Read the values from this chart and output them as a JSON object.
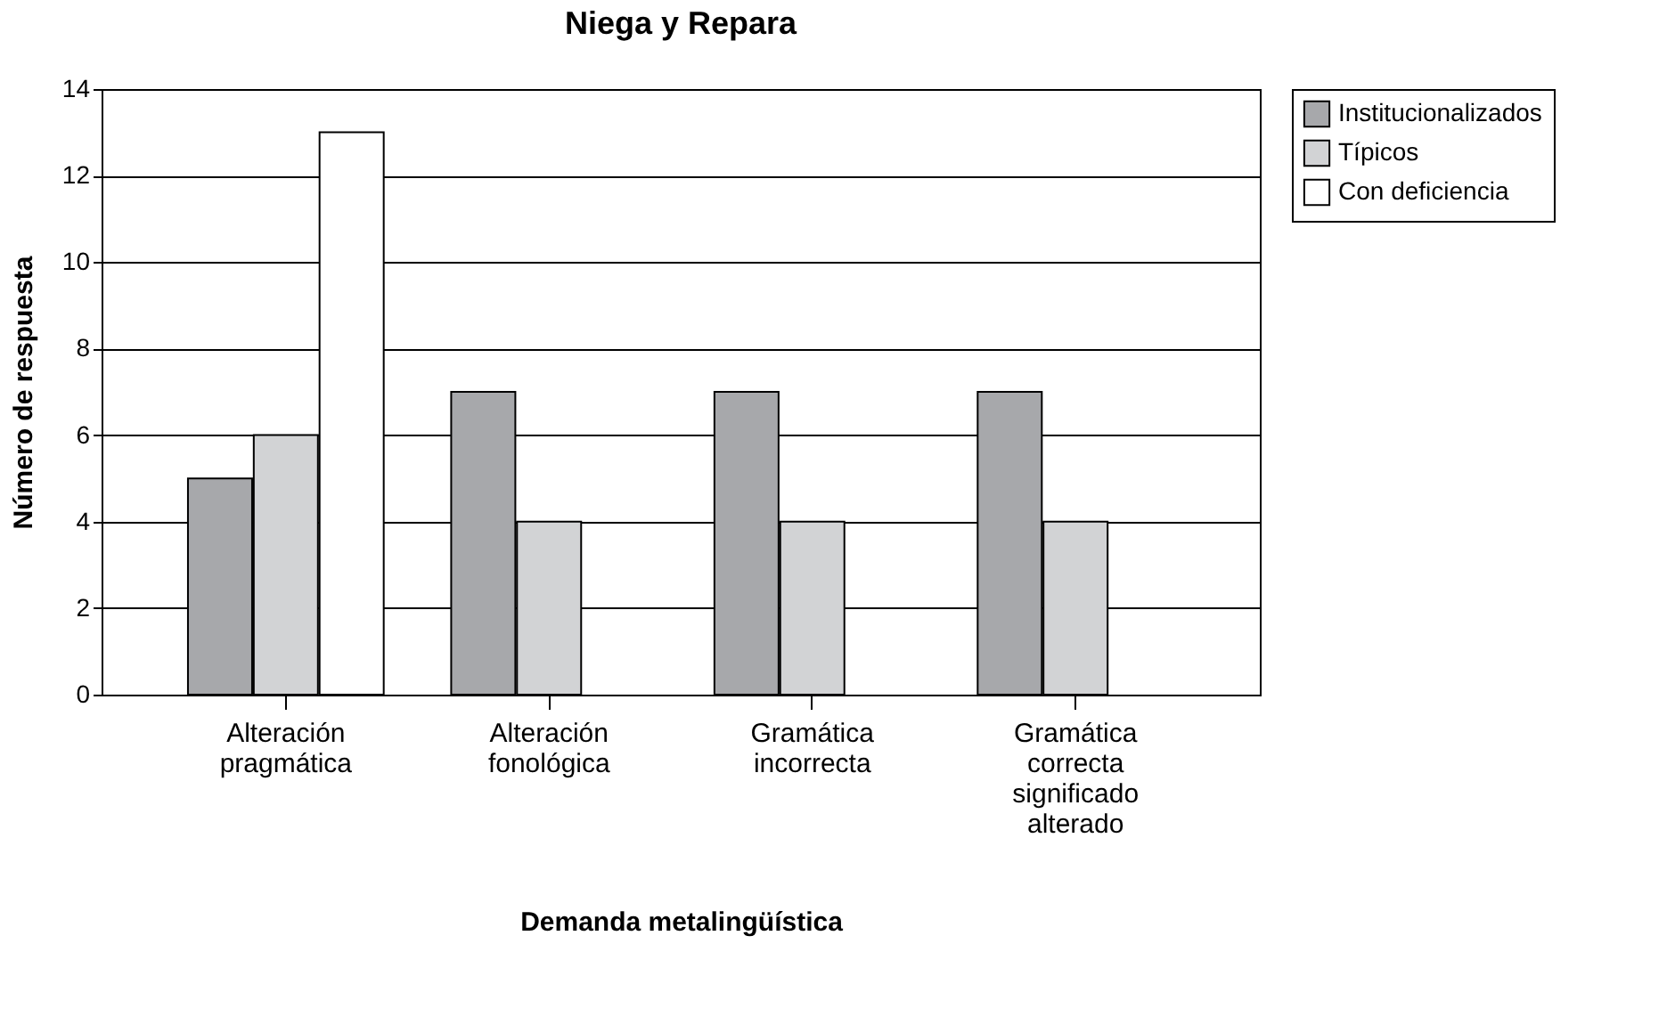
{
  "chart_data": {
    "type": "bar",
    "title": "Niega y Repara",
    "xlabel": "Demanda  metalingüística",
    "ylabel": "Número  de  respuesta",
    "categories": [
      "Alteración pragmática",
      "Alteración fonológica",
      "Gramática incorrecta",
      "Gramática correcta significado alterado"
    ],
    "series": [
      {
        "name": "Institucionalizados",
        "color": "#a7a8ab",
        "values": [
          5,
          7,
          7,
          7
        ]
      },
      {
        "name": "Típicos",
        "color": "#d2d3d5",
        "values": [
          6,
          4,
          4,
          4
        ]
      },
      {
        "name": "Con deficiencia",
        "color": "#ffffff",
        "values": [
          13,
          null,
          null,
          null
        ]
      }
    ],
    "ylim": [
      0,
      14
    ],
    "yticks": [
      0,
      2,
      4,
      6,
      8,
      10,
      12,
      14
    ],
    "grid": "y",
    "legend": "right"
  }
}
